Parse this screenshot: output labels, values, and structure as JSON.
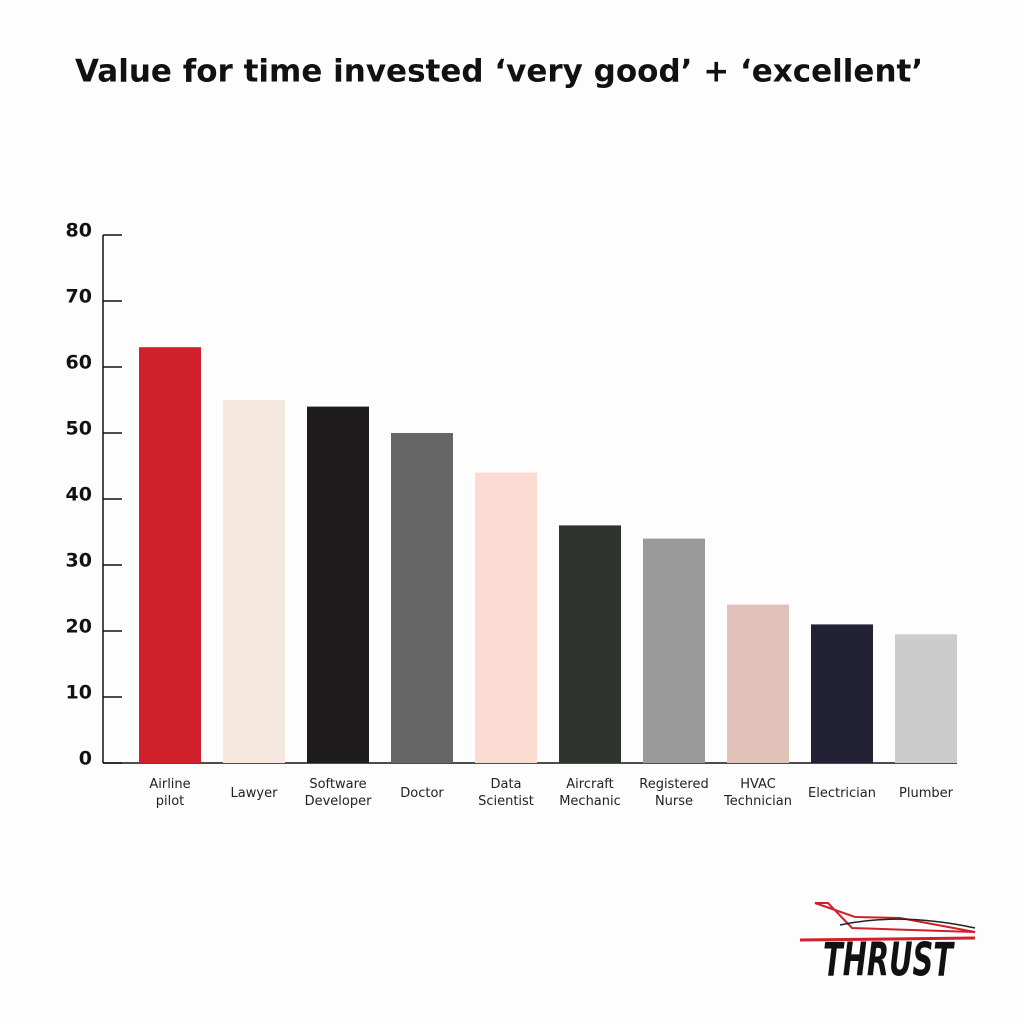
{
  "chart_data": {
    "type": "bar",
    "title": "Value for time invested ‘very good’ + ‘excellent’",
    "categories": [
      "Airline pilot",
      "Lawyer",
      "Software Developer",
      "Doctor",
      "Data Scientist",
      "Aircraft Mechanic",
      "Registered Nurse",
      "HVAC Technician",
      "Electrician",
      "Plumber"
    ],
    "values": [
      63,
      55,
      54,
      50,
      44,
      36,
      34,
      24,
      21,
      19.5
    ],
    "colors": [
      "#d0202b",
      "#f5e8df",
      "#1e1c1d",
      "#666666",
      "#fcdcd2",
      "#2e332e",
      "#9a9a9a",
      "#dfc1b8",
      "#232234",
      "#cccccc"
    ],
    "ylim": [
      0,
      80
    ],
    "yticks": [
      0,
      10,
      20,
      30,
      40,
      50,
      60,
      70,
      80
    ],
    "grid": false
  },
  "logo": "THRUST"
}
